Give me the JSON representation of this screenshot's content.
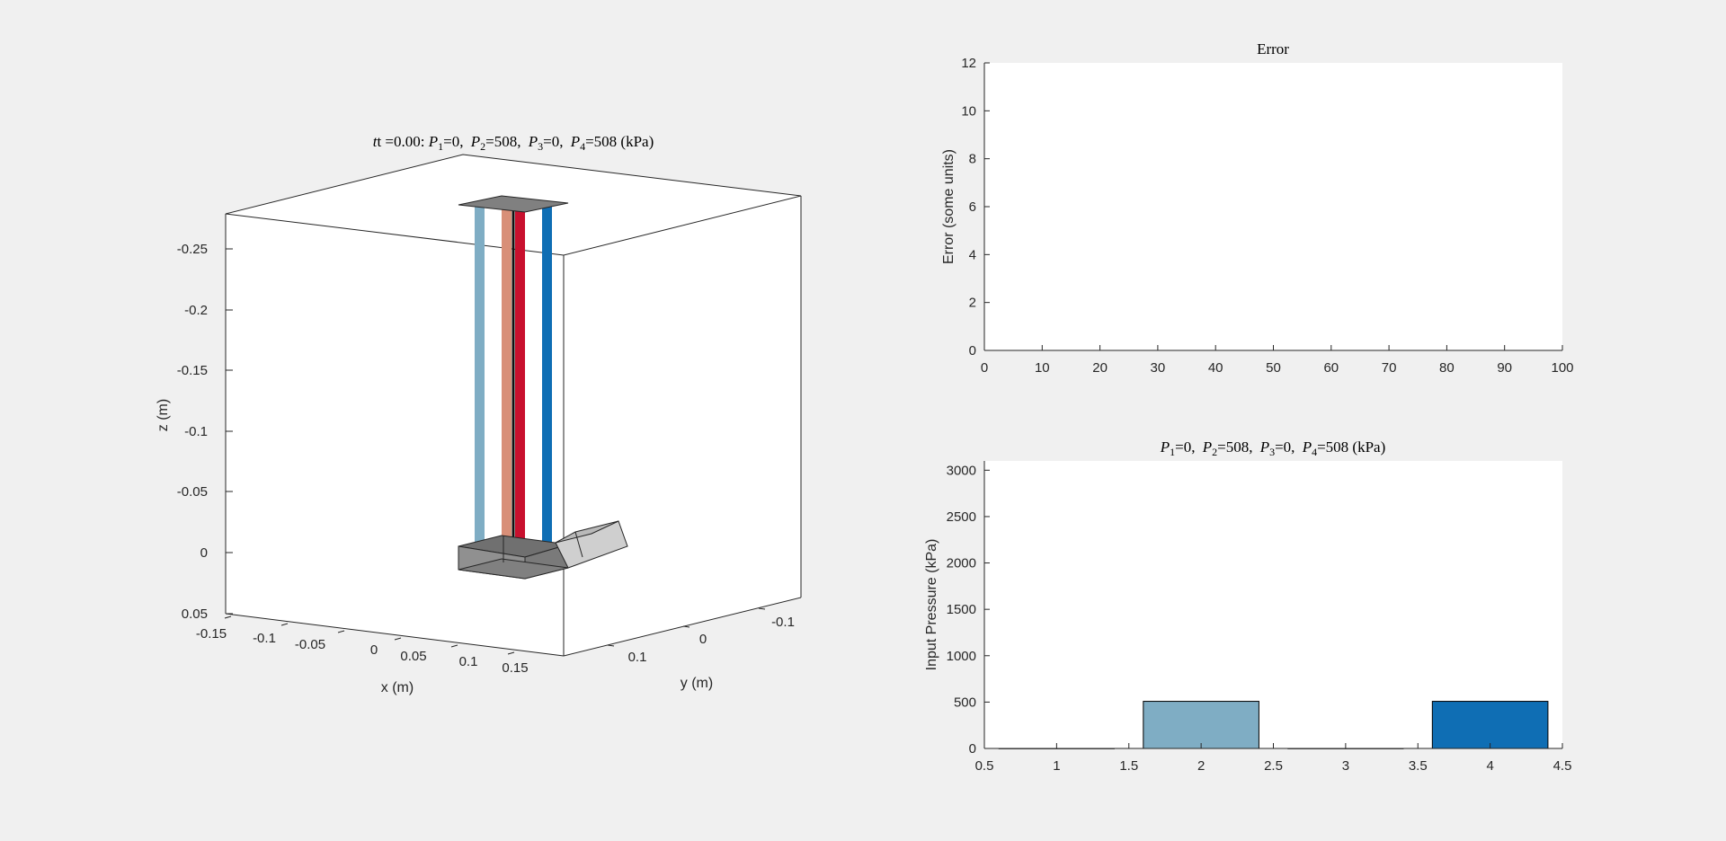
{
  "chart_data": [
    {
      "type": "3d-scene",
      "title": "t =0.00: P1 =0, P2 =508, P3 =0, P4 =508 (kPa)",
      "title_parts": {
        "prefix": "t =0.00: ",
        "p1": "=0, ",
        "p2": "=508, ",
        "p3": "=0, ",
        "p4": "=508 (kPa)"
      },
      "xlabel": "x (m)",
      "ylabel": "y (m)",
      "zlabel": "z (m)",
      "xticks": [
        "-0.15",
        "-0.1",
        "-0.05",
        "0",
        "0.05",
        "0.1",
        "0.15"
      ],
      "yticks": [
        "-0.1",
        "0",
        "0.1"
      ],
      "zticks": [
        "-0.25",
        "-0.2",
        "-0.15",
        "-0.1",
        "-0.05",
        "0",
        "0.05"
      ],
      "actuator_colors": [
        "#7fadc4",
        "#d88f78",
        "#c8102e",
        "#0f6eb4"
      ],
      "platform_color": "#808080"
    },
    {
      "type": "line",
      "title": "Error",
      "xlabel": "",
      "ylabel": "Error (some units)",
      "xlim": [
        0,
        100
      ],
      "ylim": [
        0,
        12
      ],
      "xticks": [
        0,
        10,
        20,
        30,
        40,
        50,
        60,
        70,
        80,
        90,
        100
      ],
      "yticks": [
        0,
        2,
        4,
        6,
        8,
        10,
        12
      ],
      "series": []
    },
    {
      "type": "bar",
      "title": "P1 =0, P2 =508, P3 =0, P4 =508 (kPa)",
      "title_parts": {
        "p1": "=0, ",
        "p2": "=508, ",
        "p3": "=0, ",
        "p4": "=508 (kPa)"
      },
      "xlabel": "",
      "ylabel": "Input Pressure (kPa)",
      "categories": [
        1,
        2,
        3,
        4
      ],
      "values": [
        0,
        508,
        0,
        508
      ],
      "colors": [
        "#7fadc4",
        "#7fadc4",
        "#d88f78",
        "#0f6eb4"
      ],
      "xlim": [
        0.5,
        4.5
      ],
      "ylim": [
        0,
        3100
      ],
      "xticks": [
        "0.5",
        "1",
        "1.5",
        "2",
        "2.5",
        "3",
        "3.5",
        "4",
        "4.5"
      ],
      "yticks": [
        0,
        500,
        1000,
        1500,
        2000,
        2500,
        3000
      ]
    }
  ]
}
